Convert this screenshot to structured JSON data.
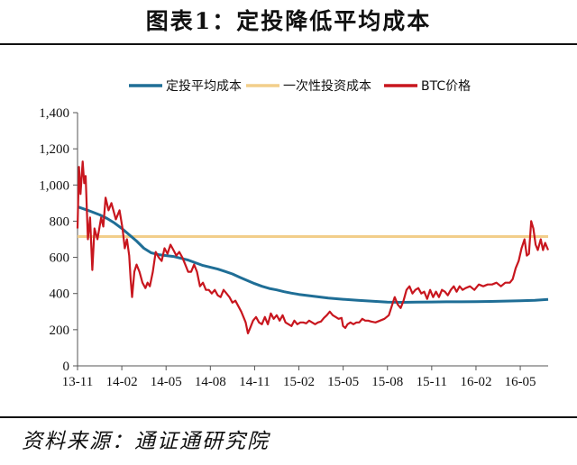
{
  "title": "图表1：定投降低平均成本",
  "source": "资料来源：通证通研究院",
  "chart_data": {
    "type": "line",
    "ylim": [
      0,
      1400
    ],
    "yticks": [
      0,
      200,
      400,
      600,
      800,
      1000,
      1200,
      1400
    ],
    "ytick_labels": [
      "0",
      "200",
      "400",
      "600",
      "800",
      "1,000",
      "1,200",
      "1,400"
    ],
    "xtick_labels": [
      "13-11",
      "14-02",
      "14-05",
      "14-08",
      "14-11",
      "15-02",
      "15-05",
      "15-08",
      "15-11",
      "16-02",
      "16-05"
    ],
    "x_range": [
      0,
      31.9
    ],
    "grid": false,
    "legend_position": "top",
    "series": [
      {
        "name": "定投平均成本",
        "color": "#1F6E96",
        "points": [
          [
            0,
            880
          ],
          [
            0.7,
            860
          ],
          [
            1.5,
            835
          ],
          [
            2,
            815
          ],
          [
            2.5,
            790
          ],
          [
            3,
            760
          ],
          [
            3.5,
            725
          ],
          [
            4,
            690
          ],
          [
            4.5,
            650
          ],
          [
            5,
            625
          ],
          [
            5.5,
            615
          ],
          [
            6,
            610
          ],
          [
            6.5,
            605
          ],
          [
            7,
            595
          ],
          [
            7.5,
            585
          ],
          [
            8,
            570
          ],
          [
            8.5,
            555
          ],
          [
            9,
            545
          ],
          [
            9.5,
            535
          ],
          [
            10,
            522
          ],
          [
            10.5,
            508
          ],
          [
            11,
            490
          ],
          [
            11.5,
            472
          ],
          [
            12,
            455
          ],
          [
            12.5,
            440
          ],
          [
            13,
            428
          ],
          [
            13.5,
            420
          ],
          [
            14,
            410
          ],
          [
            14.5,
            402
          ],
          [
            15,
            395
          ],
          [
            16,
            385
          ],
          [
            17,
            375
          ],
          [
            18,
            368
          ],
          [
            19,
            362
          ],
          [
            20,
            357
          ],
          [
            21,
            352
          ],
          [
            22,
            351
          ],
          [
            23,
            352
          ],
          [
            24,
            353
          ],
          [
            25,
            354
          ],
          [
            26,
            354
          ],
          [
            27,
            355
          ],
          [
            28,
            356
          ],
          [
            29,
            358
          ],
          [
            30,
            360
          ],
          [
            31,
            362
          ],
          [
            31.9,
            367
          ]
        ]
      },
      {
        "name": "一次性投资成本",
        "color": "#F2CE8A",
        "points": [
          [
            0,
            715
          ],
          [
            31.9,
            715
          ]
        ]
      },
      {
        "name": "BTC价格",
        "color": "#C8161E",
        "points": [
          [
            0,
            760
          ],
          [
            0.1,
            1100
          ],
          [
            0.2,
            950
          ],
          [
            0.35,
            1130
          ],
          [
            0.45,
            1010
          ],
          [
            0.55,
            1050
          ],
          [
            0.7,
            700
          ],
          [
            0.85,
            820
          ],
          [
            1,
            530
          ],
          [
            1.15,
            760
          ],
          [
            1.35,
            700
          ],
          [
            1.6,
            820
          ],
          [
            1.75,
            770
          ],
          [
            1.9,
            930
          ],
          [
            2.1,
            860
          ],
          [
            2.3,
            900
          ],
          [
            2.6,
            810
          ],
          [
            2.85,
            860
          ],
          [
            3.05,
            760
          ],
          [
            3.2,
            650
          ],
          [
            3.35,
            700
          ],
          [
            3.5,
            610
          ],
          [
            3.6,
            480
          ],
          [
            3.7,
            380
          ],
          [
            3.85,
            520
          ],
          [
            4,
            560
          ],
          [
            4.2,
            520
          ],
          [
            4.4,
            460
          ],
          [
            4.6,
            430
          ],
          [
            4.75,
            460
          ],
          [
            4.9,
            440
          ],
          [
            5.1,
            520
          ],
          [
            5.3,
            630
          ],
          [
            5.5,
            600
          ],
          [
            5.7,
            580
          ],
          [
            5.9,
            650
          ],
          [
            6.1,
            620
          ],
          [
            6.3,
            670
          ],
          [
            6.5,
            640
          ],
          [
            6.7,
            610
          ],
          [
            6.9,
            630
          ],
          [
            7.1,
            600
          ],
          [
            7.3,
            560
          ],
          [
            7.5,
            520
          ],
          [
            7.7,
            520
          ],
          [
            7.9,
            560
          ],
          [
            8.1,
            520
          ],
          [
            8.3,
            440
          ],
          [
            8.5,
            460
          ],
          [
            8.7,
            420
          ],
          [
            8.9,
            420
          ],
          [
            9.1,
            400
          ],
          [
            9.3,
            420
          ],
          [
            9.5,
            390
          ],
          [
            9.7,
            380
          ],
          [
            9.9,
            420
          ],
          [
            10.1,
            400
          ],
          [
            10.3,
            380
          ],
          [
            10.5,
            350
          ],
          [
            10.7,
            360
          ],
          [
            10.9,
            330
          ],
          [
            11.1,
            300
          ],
          [
            11.3,
            260
          ],
          [
            11.4,
            240
          ],
          [
            11.55,
            180
          ],
          [
            11.7,
            210
          ],
          [
            11.9,
            250
          ],
          [
            12.1,
            270
          ],
          [
            12.3,
            240
          ],
          [
            12.5,
            230
          ],
          [
            12.7,
            270
          ],
          [
            12.9,
            230
          ],
          [
            13.1,
            290
          ],
          [
            13.3,
            260
          ],
          [
            13.5,
            280
          ],
          [
            13.7,
            250
          ],
          [
            13.9,
            280
          ],
          [
            14.1,
            240
          ],
          [
            14.3,
            230
          ],
          [
            14.5,
            220
          ],
          [
            14.7,
            250
          ],
          [
            14.9,
            230
          ],
          [
            15.1,
            240
          ],
          [
            15.3,
            240
          ],
          [
            15.5,
            235
          ],
          [
            15.7,
            250
          ],
          [
            15.9,
            240
          ],
          [
            16.1,
            230
          ],
          [
            16.3,
            240
          ],
          [
            16.5,
            245
          ],
          [
            16.7,
            265
          ],
          [
            16.9,
            280
          ],
          [
            17.1,
            300
          ],
          [
            17.3,
            280
          ],
          [
            17.5,
            270
          ],
          [
            17.7,
            260
          ],
          [
            17.9,
            265
          ],
          [
            18,
            220
          ],
          [
            18.15,
            210
          ],
          [
            18.3,
            230
          ],
          [
            18.5,
            240
          ],
          [
            18.7,
            230
          ],
          [
            18.9,
            240
          ],
          [
            19.1,
            240
          ],
          [
            19.3,
            260
          ],
          [
            19.5,
            250
          ],
          [
            19.7,
            250
          ],
          [
            19.9,
            245
          ],
          [
            20.2,
            240
          ],
          [
            20.5,
            250
          ],
          [
            20.8,
            260
          ],
          [
            21.1,
            280
          ],
          [
            21.3,
            330
          ],
          [
            21.5,
            380
          ],
          [
            21.7,
            340
          ],
          [
            21.9,
            320
          ],
          [
            22.1,
            360
          ],
          [
            22.3,
            420
          ],
          [
            22.5,
            440
          ],
          [
            22.7,
            400
          ],
          [
            22.9,
            420
          ],
          [
            23.1,
            430
          ],
          [
            23.3,
            400
          ],
          [
            23.5,
            410
          ],
          [
            23.7,
            370
          ],
          [
            23.9,
            420
          ],
          [
            24.1,
            380
          ],
          [
            24.3,
            410
          ],
          [
            24.5,
            380
          ],
          [
            24.7,
            420
          ],
          [
            24.9,
            410
          ],
          [
            25.1,
            390
          ],
          [
            25.3,
            420
          ],
          [
            25.5,
            440
          ],
          [
            25.7,
            410
          ],
          [
            25.9,
            440
          ],
          [
            26.1,
            420
          ],
          [
            26.3,
            430
          ],
          [
            26.6,
            440
          ],
          [
            26.9,
            420
          ],
          [
            27.2,
            450
          ],
          [
            27.5,
            440
          ],
          [
            27.8,
            450
          ],
          [
            28.1,
            450
          ],
          [
            28.4,
            460
          ],
          [
            28.7,
            440
          ],
          [
            29,
            460
          ],
          [
            29.3,
            460
          ],
          [
            29.5,
            480
          ],
          [
            29.7,
            540
          ],
          [
            29.9,
            580
          ],
          [
            30.1,
            650
          ],
          [
            30.3,
            700
          ],
          [
            30.45,
            610
          ],
          [
            30.6,
            620
          ],
          [
            30.75,
            800
          ],
          [
            30.9,
            760
          ],
          [
            31.05,
            670
          ],
          [
            31.2,
            640
          ],
          [
            31.4,
            700
          ],
          [
            31.55,
            640
          ],
          [
            31.7,
            680
          ],
          [
            31.9,
            640
          ]
        ]
      }
    ]
  }
}
